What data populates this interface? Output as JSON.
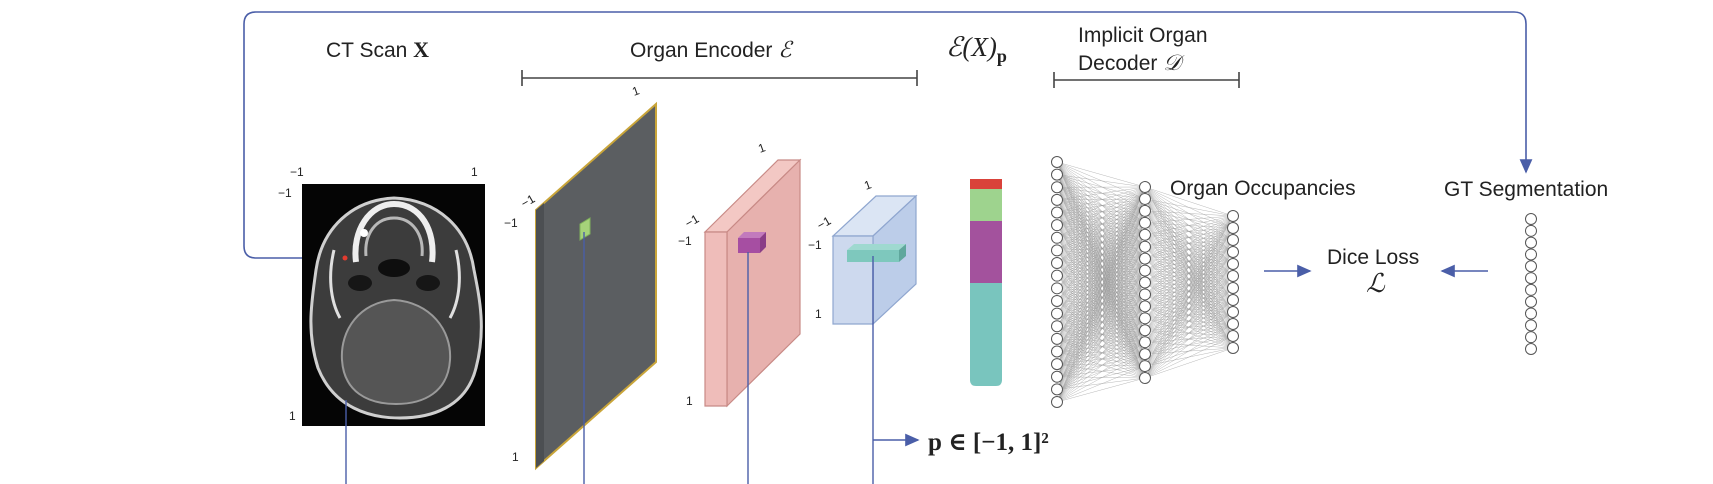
{
  "labels": {
    "ct_scan_prefix": "CT Scan ",
    "ct_scan_symbol": "X",
    "encoder_prefix": "Organ Encoder ",
    "encoder_symbol": "ℰ",
    "feature_symbol": "ℰ(X)",
    "feature_subscript": "p",
    "decoder_line1": "Implicit Organ",
    "decoder_line2_prefix": "Decoder ",
    "decoder_symbol": "𝒟",
    "occupancies": "Organ Occupancies",
    "gt": "GT Segmentation",
    "dice_line1": "Dice Loss",
    "dice_symbol": "ℒ",
    "point_expr": "p ∈ [−1, 1]²"
  },
  "ticks": {
    "neg": "−1",
    "pos": "1"
  },
  "colors": {
    "line_blue": "#4a5ea8",
    "map1": "#595c5f",
    "map1_edge": "#c9a53a",
    "map2": "#e9b8b6",
    "map3": "#c9d7ee",
    "patch1": "#a6d37a",
    "patch2": "#a64ea2",
    "patch3": "#7ec8bd",
    "feat_red": "#d9423a",
    "feat_green": "#9ed38e",
    "feat_purple": "#a3529d",
    "feat_teal": "#79c5be"
  }
}
